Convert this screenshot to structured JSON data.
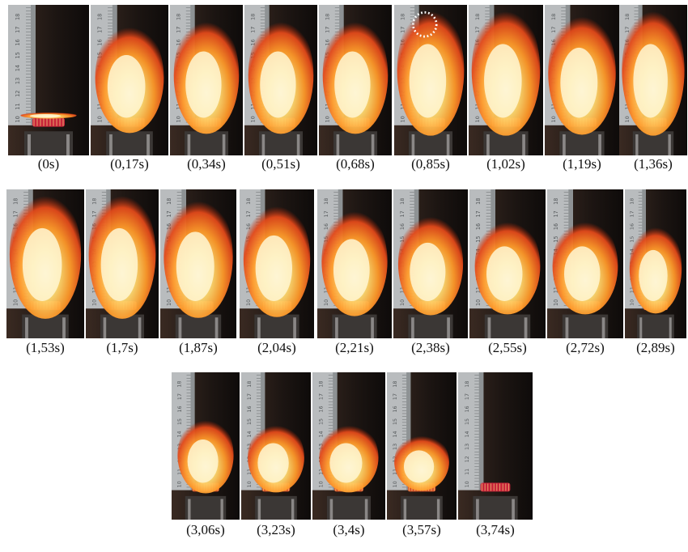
{
  "rows": [
    {
      "frames": [
        {
          "label": "(0s)",
          "flame": 0.05,
          "state": "off"
        },
        {
          "label": "(0,17s)",
          "flame": 0.85,
          "state": "burn"
        },
        {
          "label": "(0,34s)",
          "flame": 0.9,
          "state": "burn"
        },
        {
          "label": "(0,51s)",
          "flame": 0.9,
          "state": "burn"
        },
        {
          "label": "(0,68s)",
          "flame": 0.9,
          "state": "burn"
        },
        {
          "label": "(0,85s)",
          "flame": 1.0,
          "state": "burn",
          "marker": true
        },
        {
          "label": "(1,02s)",
          "flame": 1.0,
          "state": "burn"
        },
        {
          "label": "(1,19s)",
          "flame": 0.95,
          "state": "burn"
        },
        {
          "label": "(1,36s)",
          "flame": 1.0,
          "state": "burn"
        }
      ]
    },
    {
      "frames": [
        {
          "label": "(1,53s)",
          "flame": 1.0,
          "state": "burn"
        },
        {
          "label": "(1,7s)",
          "flame": 1.0,
          "state": "burn"
        },
        {
          "label": "(1,87s)",
          "flame": 0.95,
          "state": "burn"
        },
        {
          "label": "(2,04s)",
          "flame": 0.9,
          "state": "burn"
        },
        {
          "label": "(2,21s)",
          "flame": 0.85,
          "state": "burn"
        },
        {
          "label": "(2,38s)",
          "flame": 0.8,
          "state": "burn"
        },
        {
          "label": "(2,55s)",
          "flame": 0.75,
          "state": "burn"
        },
        {
          "label": "(2,72s)",
          "flame": 0.75,
          "state": "burn"
        },
        {
          "label": "(2,89s)",
          "flame": 0.7,
          "state": "burn"
        }
      ]
    },
    {
      "frames": [
        {
          "label": "(3,06s)",
          "flame": 0.6,
          "state": "burn"
        },
        {
          "label": "(3,23s)",
          "flame": 0.55,
          "state": "burn"
        },
        {
          "label": "(3,4s)",
          "flame": 0.55,
          "state": "burn"
        },
        {
          "label": "(3,57s)",
          "flame": 0.45,
          "state": "burn"
        },
        {
          "label": "(3,74s)",
          "flame": 0.0,
          "state": "off"
        }
      ]
    }
  ],
  "ruler_marks": [
    "10",
    "11",
    "12",
    "13",
    "14",
    "15",
    "16",
    "17",
    "18"
  ]
}
